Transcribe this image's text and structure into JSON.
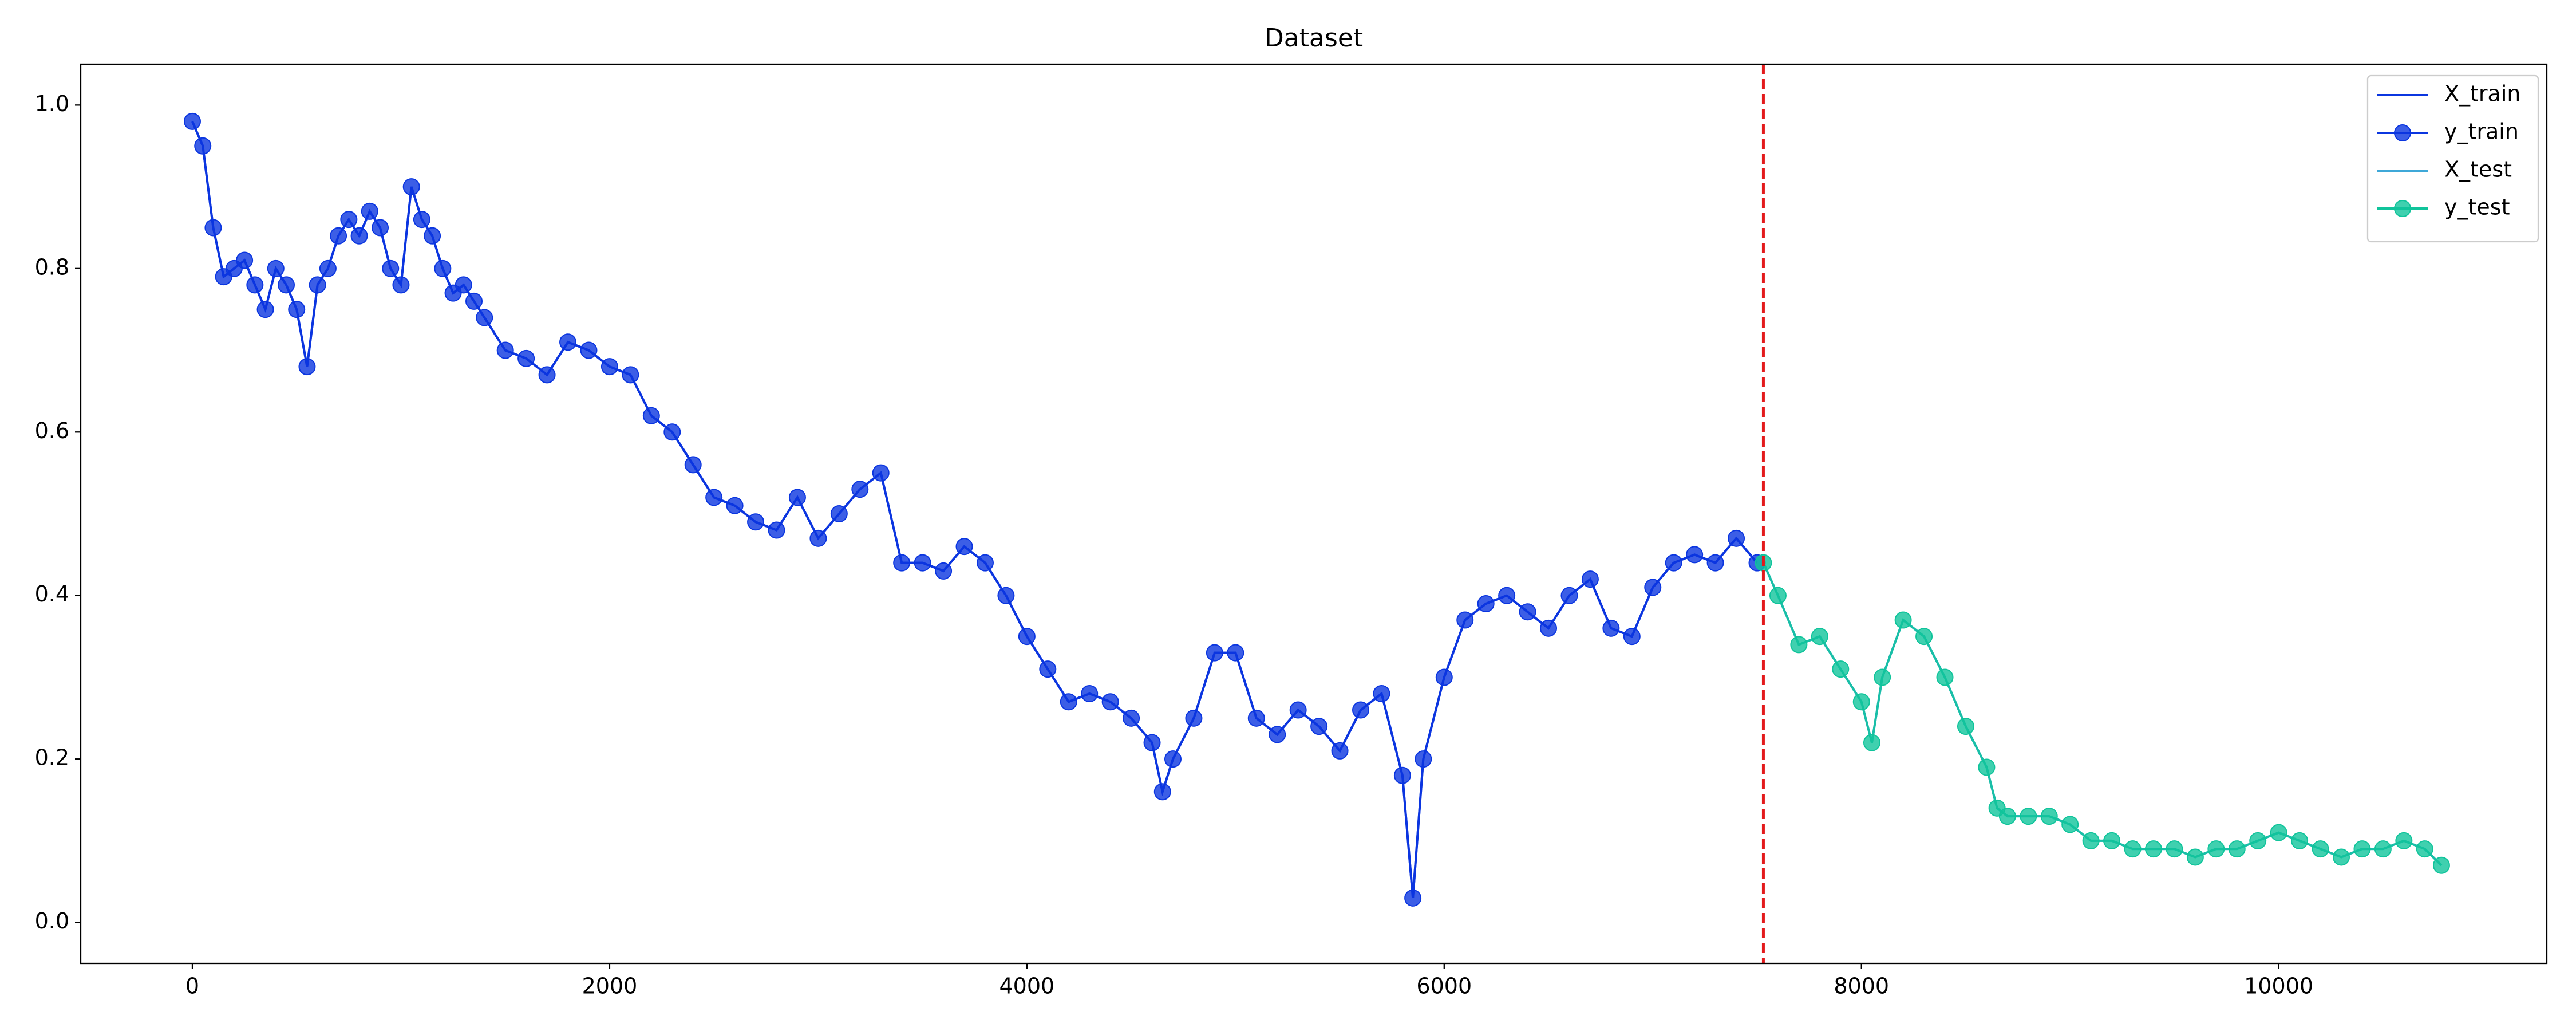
{
  "chart_data": {
    "type": "line",
    "title": "Dataset",
    "xlim": [
      -535,
      11285
    ],
    "ylim": [
      -0.05,
      1.05
    ],
    "xticks": [
      0,
      2000,
      4000,
      6000,
      8000,
      10000
    ],
    "yticks": [
      {
        "value": 0,
        "label": "0.0"
      },
      {
        "value": 0.2,
        "label": "0.2"
      },
      {
        "value": 0.4,
        "label": "0.4"
      },
      {
        "value": 0.6,
        "label": "0.6"
      },
      {
        "value": 0.8,
        "label": "0.8"
      },
      {
        "value": 1,
        "label": "1.0"
      }
    ],
    "legend": "upper right",
    "vlines": [
      {
        "x": 7530,
        "color": "#e31a1c",
        "style": "dashed"
      }
    ],
    "series": [
      {
        "name": "X_train",
        "color": "#0b36e0",
        "mode": "line",
        "x": [
          0,
          50,
          100,
          150,
          200,
          250,
          300,
          350,
          400,
          450,
          500,
          550,
          600,
          650,
          700,
          750,
          800,
          850,
          900,
          950,
          1000,
          1050,
          1100,
          1150,
          1200,
          1250,
          1300,
          1350,
          1400,
          1500,
          1600,
          1700,
          1800,
          1900,
          2000,
          2100,
          2200,
          2300,
          2400,
          2500,
          2600,
          2700,
          2800,
          2900,
          3000,
          3100,
          3200,
          3300,
          3400,
          3500,
          3600,
          3700,
          3800,
          3900,
          4000,
          4100,
          4200,
          4300,
          4400,
          4500,
          4600,
          4650,
          4700,
          4800,
          4900,
          5000,
          5100,
          5200,
          5300,
          5400,
          5500,
          5600,
          5700,
          5800,
          5850,
          5900,
          6000,
          6100,
          6200,
          6300,
          6400,
          6500,
          6600,
          6700,
          6800,
          6900,
          7000,
          7100,
          7200,
          7300,
          7400,
          7500
        ],
        "values": [
          0.98,
          0.95,
          0.85,
          0.79,
          0.8,
          0.81,
          0.78,
          0.75,
          0.8,
          0.78,
          0.75,
          0.68,
          0.78,
          0.8,
          0.84,
          0.86,
          0.84,
          0.87,
          0.85,
          0.8,
          0.78,
          0.9,
          0.86,
          0.84,
          0.8,
          0.77,
          0.78,
          0.76,
          0.74,
          0.7,
          0.69,
          0.67,
          0.71,
          0.7,
          0.68,
          0.67,
          0.62,
          0.6,
          0.56,
          0.52,
          0.51,
          0.49,
          0.48,
          0.52,
          0.47,
          0.5,
          0.53,
          0.55,
          0.44,
          0.44,
          0.43,
          0.46,
          0.44,
          0.4,
          0.35,
          0.31,
          0.27,
          0.28,
          0.27,
          0.25,
          0.22,
          0.16,
          0.2,
          0.25,
          0.33,
          0.33,
          0.25,
          0.23,
          0.26,
          0.24,
          0.21,
          0.26,
          0.28,
          0.18,
          0.03,
          0.2,
          0.3,
          0.37,
          0.39,
          0.4,
          0.38,
          0.36,
          0.4,
          0.42,
          0.36,
          0.35,
          0.41,
          0.44,
          0.45,
          0.44,
          0.47,
          0.44
        ]
      },
      {
        "name": "y_train",
        "color": "#0b36e0",
        "mode": "markers",
        "x": [
          0,
          50,
          100,
          150,
          200,
          250,
          300,
          350,
          400,
          450,
          500,
          550,
          600,
          650,
          700,
          750,
          800,
          850,
          900,
          950,
          1000,
          1050,
          1100,
          1150,
          1200,
          1250,
          1300,
          1350,
          1400,
          1500,
          1600,
          1700,
          1800,
          1900,
          2000,
          2100,
          2200,
          2300,
          2400,
          2500,
          2600,
          2700,
          2800,
          2900,
          3000,
          3100,
          3200,
          3300,
          3400,
          3500,
          3600,
          3700,
          3800,
          3900,
          4000,
          4100,
          4200,
          4300,
          4400,
          4500,
          4600,
          4650,
          4700,
          4800,
          4900,
          5000,
          5100,
          5200,
          5300,
          5400,
          5500,
          5600,
          5700,
          5800,
          5850,
          5900,
          6000,
          6100,
          6200,
          6300,
          6400,
          6500,
          6600,
          6700,
          6800,
          6900,
          7000,
          7100,
          7200,
          7300,
          7400,
          7500
        ],
        "values": [
          0.98,
          0.95,
          0.85,
          0.79,
          0.8,
          0.81,
          0.78,
          0.75,
          0.8,
          0.78,
          0.75,
          0.68,
          0.78,
          0.8,
          0.84,
          0.86,
          0.84,
          0.87,
          0.85,
          0.8,
          0.78,
          0.9,
          0.86,
          0.84,
          0.8,
          0.77,
          0.78,
          0.76,
          0.74,
          0.7,
          0.69,
          0.67,
          0.71,
          0.7,
          0.68,
          0.67,
          0.62,
          0.6,
          0.56,
          0.52,
          0.51,
          0.49,
          0.48,
          0.52,
          0.47,
          0.5,
          0.53,
          0.55,
          0.44,
          0.44,
          0.43,
          0.46,
          0.44,
          0.4,
          0.35,
          0.31,
          0.27,
          0.28,
          0.27,
          0.25,
          0.22,
          0.16,
          0.2,
          0.25,
          0.33,
          0.33,
          0.25,
          0.23,
          0.26,
          0.24,
          0.21,
          0.26,
          0.28,
          0.18,
          0.03,
          0.2,
          0.3,
          0.37,
          0.39,
          0.4,
          0.38,
          0.36,
          0.4,
          0.42,
          0.36,
          0.35,
          0.41,
          0.44,
          0.45,
          0.44,
          0.47,
          0.44
        ]
      },
      {
        "name": "X_test",
        "color": "#3fa8d8",
        "mode": "line",
        "x": [
          7530,
          7600,
          7700,
          7800,
          7900,
          8000,
          8050,
          8100,
          8200,
          8300,
          8400,
          8500,
          8600,
          8650,
          8700,
          8800,
          8900,
          9000,
          9100,
          9200,
          9300,
          9400,
          9500,
          9600,
          9700,
          9800,
          9900,
          10000,
          10100,
          10200,
          10300,
          10400,
          10500,
          10600,
          10700,
          10780
        ],
        "values": [
          0.44,
          0.4,
          0.34,
          0.35,
          0.31,
          0.27,
          0.22,
          0.3,
          0.37,
          0.35,
          0.3,
          0.24,
          0.19,
          0.14,
          0.13,
          0.13,
          0.13,
          0.12,
          0.1,
          0.1,
          0.09,
          0.09,
          0.09,
          0.08,
          0.09,
          0.09,
          0.1,
          0.11,
          0.1,
          0.09,
          0.08,
          0.09,
          0.09,
          0.1,
          0.09,
          0.07
        ]
      },
      {
        "name": "y_test",
        "color": "#10c49b",
        "mode": "markers",
        "x": [
          7530,
          7600,
          7700,
          7800,
          7900,
          8000,
          8050,
          8100,
          8200,
          8300,
          8400,
          8500,
          8600,
          8650,
          8700,
          8800,
          8900,
          9000,
          9100,
          9200,
          9300,
          9400,
          9500,
          9600,
          9700,
          9800,
          9900,
          10000,
          10100,
          10200,
          10300,
          10400,
          10500,
          10600,
          10700,
          10780
        ],
        "values": [
          0.44,
          0.4,
          0.34,
          0.35,
          0.31,
          0.27,
          0.22,
          0.3,
          0.37,
          0.35,
          0.3,
          0.24,
          0.19,
          0.14,
          0.13,
          0.13,
          0.13,
          0.12,
          0.1,
          0.1,
          0.09,
          0.09,
          0.09,
          0.08,
          0.09,
          0.09,
          0.1,
          0.11,
          0.1,
          0.09,
          0.08,
          0.09,
          0.09,
          0.1,
          0.09,
          0.07
        ]
      }
    ]
  }
}
